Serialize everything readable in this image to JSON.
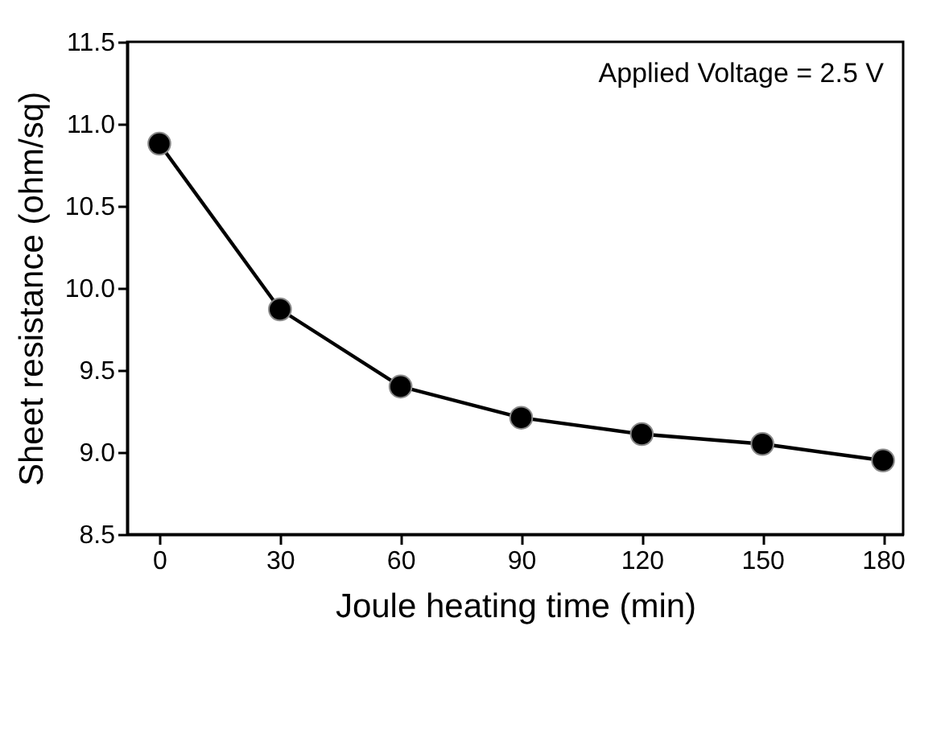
{
  "chart_data": {
    "type": "line",
    "xlabel": "Joule heating time (min)",
    "ylabel": "Sheet resistance (ohm/sq)",
    "annotations": [
      "Applied Voltage = 2.5 V"
    ],
    "x": [
      0,
      30,
      60,
      90,
      120,
      150,
      180
    ],
    "series": [
      {
        "color": "#000000",
        "values": [
          10.88,
          9.87,
          9.4,
          9.21,
          9.11,
          9.05,
          8.95
        ]
      }
    ],
    "xlim": [
      -8,
      185
    ],
    "xticks": [
      0,
      30,
      60,
      90,
      120,
      150,
      180
    ],
    "ylim": [
      8.5,
      11.5
    ],
    "yticks": [
      8.5,
      {
        "value": 9,
        "label": "9.0"
      },
      9.5,
      {
        "value": 10,
        "label": "10.0"
      },
      10.5,
      {
        "value": 11,
        "label": "11.0"
      },
      11.5
    ],
    "marker": "circle",
    "line_style": "solid",
    "grid": false
  }
}
